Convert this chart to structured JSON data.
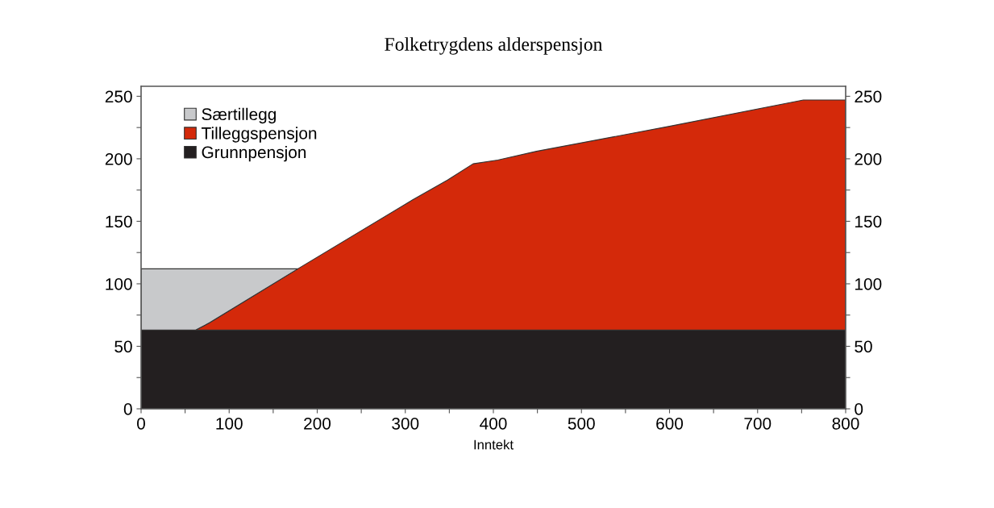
{
  "chart_data": {
    "type": "area",
    "stacked": true,
    "title": "Folketrygdens alderspensjon",
    "xlabel": "Inntekt",
    "x": [
      0,
      62,
      78,
      178,
      308,
      348,
      377,
      405,
      449,
      600,
      752,
      800
    ],
    "series": [
      {
        "name": "Grunnpensjon",
        "color": "#231f20",
        "values": [
          63,
          63,
          63,
          63,
          63,
          63,
          63,
          63,
          63,
          63,
          63,
          63
        ]
      },
      {
        "name": "Tilleggspensjon",
        "color": "#d4290a",
        "values": [
          0,
          0,
          6,
          49,
          104,
          120,
          133,
          136,
          143,
          163,
          184,
          184
        ]
      },
      {
        "name": "Særtillegg",
        "color": "#c8c9cb",
        "x": [
          0,
          62,
          78,
          178
        ],
        "values": [
          49,
          49,
          43,
          0
        ]
      }
    ],
    "xlim": [
      0,
      800
    ],
    "xticks": [
      0,
      {
        "value": 50,
        "label": null
      },
      100,
      {
        "value": 150,
        "label": null
      },
      200,
      {
        "value": 250,
        "label": null
      },
      300,
      {
        "value": 350,
        "label": null
      },
      400,
      {
        "value": 450,
        "label": null
      },
      500,
      {
        "value": 550,
        "label": null
      },
      600,
      {
        "value": 650,
        "label": null
      },
      700,
      {
        "value": 750,
        "label": null
      },
      800
    ],
    "ylim": [
      0,
      258
    ],
    "yticks": [
      0,
      {
        "value": 25,
        "label": null
      },
      50,
      {
        "value": 75,
        "label": null
      },
      100,
      {
        "value": 125,
        "label": null
      },
      150,
      {
        "value": 175,
        "label": null
      },
      200,
      {
        "value": 225,
        "label": null
      },
      250
    ],
    "y2lim": [
      0,
      258
    ],
    "y2ticks": [
      0,
      {
        "value": 25,
        "label": null
      },
      50,
      {
        "value": 75,
        "label": null
      },
      100,
      {
        "value": 125,
        "label": null
      },
      150,
      {
        "value": 175,
        "label": null
      },
      200,
      {
        "value": 225,
        "label": null
      },
      250
    ],
    "grid": false,
    "legend": "top left"
  }
}
